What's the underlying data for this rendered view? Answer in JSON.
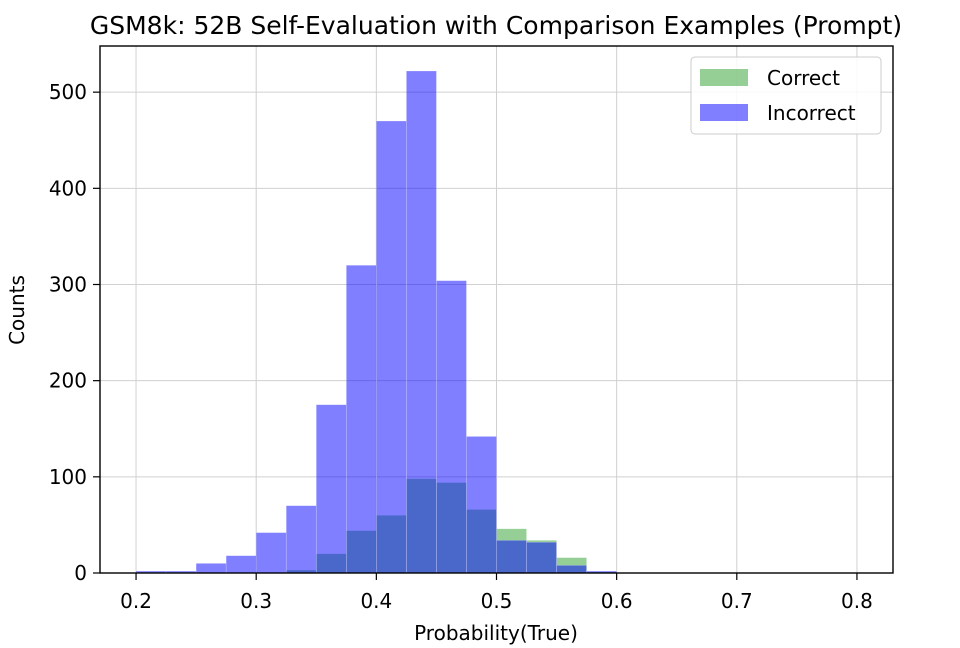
{
  "chart_data": {
    "type": "histogram",
    "title": "GSM8k: 52B Self-Evaluation with Comparison Examples (Prompt)",
    "xlabel": "Probability(True)",
    "ylabel": "Counts",
    "xlim": [
      0.17,
      0.83
    ],
    "ylim": [
      0,
      548
    ],
    "xticks": [
      0.2,
      0.3,
      0.4,
      0.5,
      0.6,
      0.7,
      0.8
    ],
    "xtick_labels": [
      "0.2",
      "0.3",
      "0.4",
      "0.5",
      "0.6",
      "0.7",
      "0.8"
    ],
    "yticks": [
      0,
      100,
      200,
      300,
      400,
      500
    ],
    "ytick_labels": [
      "0",
      "100",
      "200",
      "300",
      "400",
      "500"
    ],
    "grid": true,
    "legend_position": "top-right",
    "bin_edges": [
      0.2,
      0.225,
      0.25,
      0.275,
      0.3,
      0.325,
      0.35,
      0.375,
      0.4,
      0.425,
      0.45,
      0.475,
      0.5,
      0.525,
      0.55,
      0.575,
      0.6,
      0.625,
      0.65,
      0.675,
      0.7,
      0.725,
      0.75,
      0.775,
      0.8
    ],
    "series": [
      {
        "name": "Correct",
        "color": "#2ca02c",
        "opacity": 0.5,
        "values": [
          0,
          0,
          0,
          0,
          0,
          3,
          20,
          44,
          60,
          98,
          94,
          66,
          46,
          34,
          16,
          1,
          0,
          0,
          0,
          0,
          0,
          0,
          0,
          0
        ]
      },
      {
        "name": "Incorrect",
        "color": "#0000ff",
        "opacity": 0.5,
        "values": [
          2,
          2,
          10,
          18,
          42,
          70,
          175,
          320,
          470,
          522,
          304,
          142,
          34,
          32,
          8,
          2,
          0,
          0,
          0,
          0,
          0,
          0,
          0,
          0
        ]
      }
    ]
  }
}
